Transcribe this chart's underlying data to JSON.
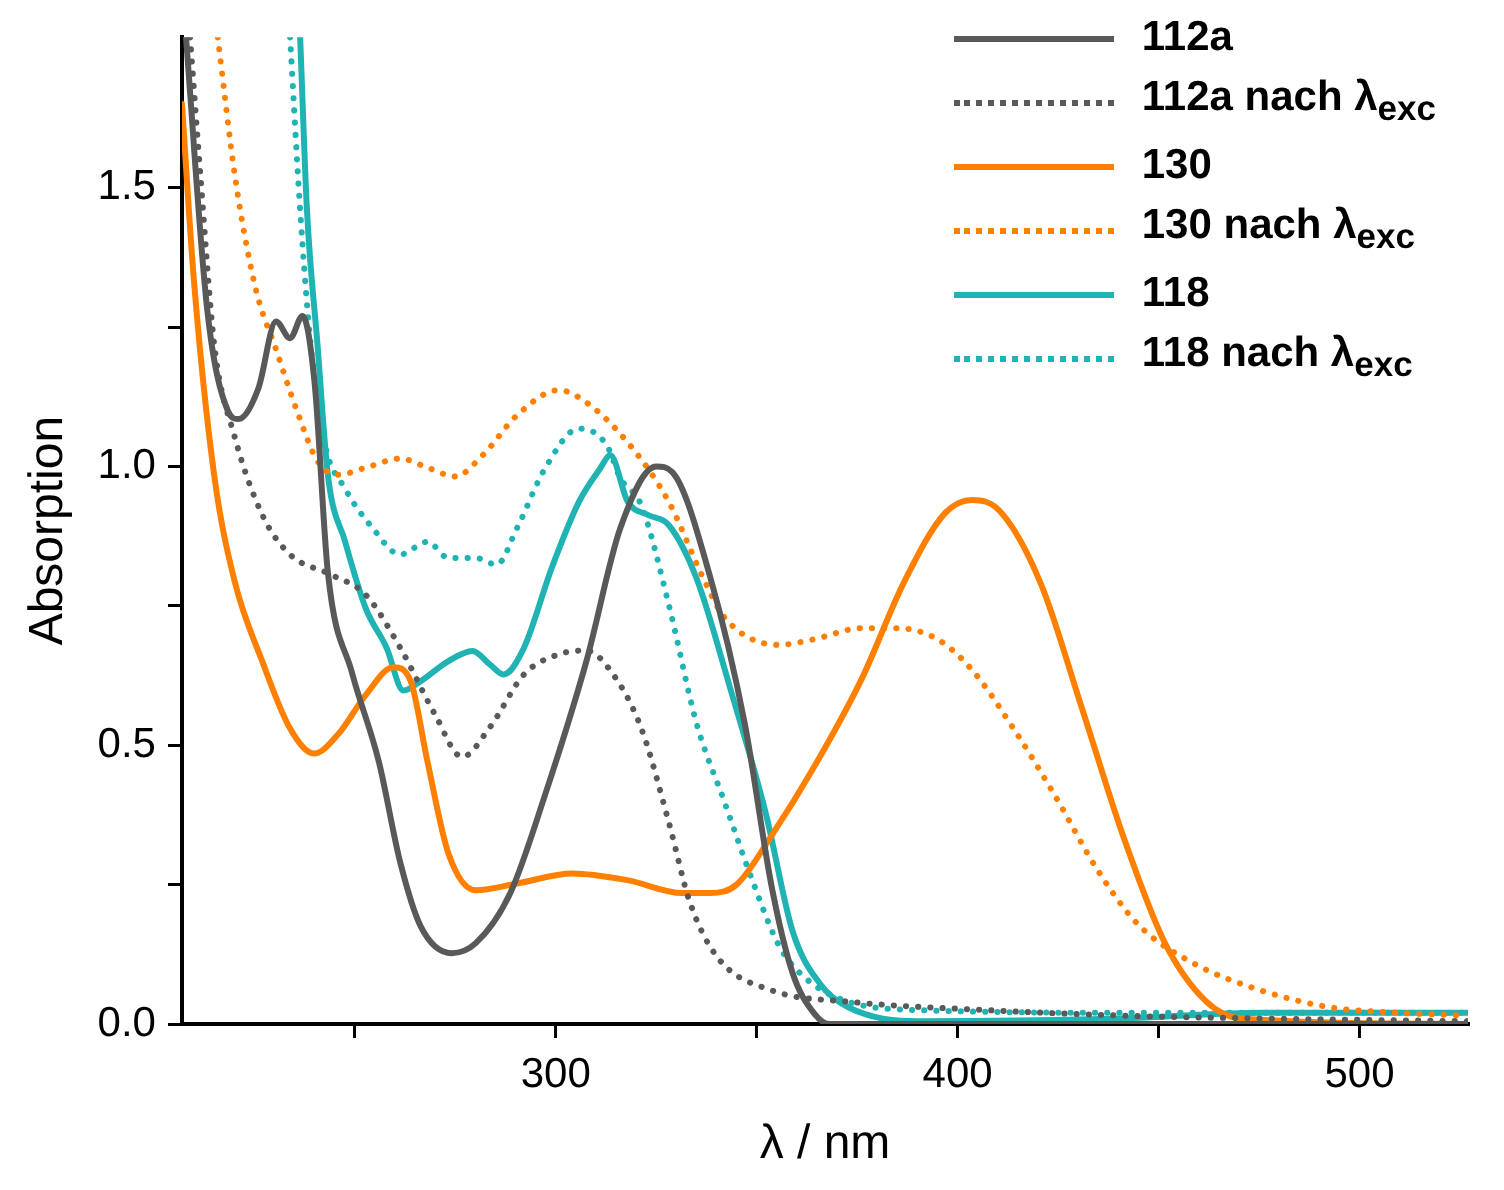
{
  "chart_data": {
    "type": "line",
    "xlabel": "λ / nm",
    "ylabel": "Absorption",
    "xlim": [
      207,
      527
    ],
    "ylim": [
      0,
      1.77
    ],
    "xticks": [
      {
        "value": 250,
        "label": null
      },
      300,
      {
        "value": 350,
        "label": null
      },
      400,
      {
        "value": 450,
        "label": null
      },
      500
    ],
    "yticks": [
      {
        "value": 0,
        "label": "0.0"
      },
      {
        "value": 0.25,
        "label": null
      },
      {
        "value": 0.5,
        "label": "0.5"
      },
      {
        "value": 0.75,
        "label": null
      },
      {
        "value": 1,
        "label": "1.0"
      },
      {
        "value": 1.25,
        "label": null
      },
      {
        "value": 1.5,
        "label": "1.5"
      }
    ],
    "grid": false,
    "legend": "top right",
    "series": [
      {
        "name": "112a",
        "color": "#595959",
        "line_style": "solid",
        "x": [
          208,
          213.3,
          218.4,
          221,
          226,
          230.4,
          233.9,
          237,
          240,
          243.3,
          249.3,
          256,
          261.3,
          266.4,
          274.1,
          280.1,
          288.7,
          297.3,
          307.6,
          316.1,
          325,
          329,
          338.5,
          347,
          353.9,
          359,
          364.2,
          368,
          400,
          450,
          527
        ],
        "values": [
          1.77,
          1.28,
          1.1,
          1.085,
          1.14,
          1.26,
          1.23,
          1.27,
          1.15,
          0.81,
          0.63,
          0.47,
          0.29,
          0.175,
          0.127,
          0.145,
          0.235,
          0.41,
          0.65,
          0.89,
          1.0,
          0.99,
          0.8,
          0.54,
          0.24,
          0.09,
          0.02,
          0,
          0,
          0,
          0
        ]
      },
      {
        "name": "112a nach λ$_{exc}$",
        "color": "#595959",
        "line_style": "dotted",
        "x": [
          209,
          211.6,
          215,
          220,
          227,
          233.9,
          244.1,
          252.7,
          261.3,
          269.9,
          276.7,
          283.6,
          292.1,
          300.7,
          307.6,
          314,
          321.3,
          328.2,
          333.3,
          340.2,
          353.9,
          372.8,
          407,
          441,
          475,
          527
        ],
        "values": [
          1.77,
          1.52,
          1.22,
          1.056,
          0.913,
          0.842,
          0.806,
          0.77,
          0.675,
          0.556,
          0.479,
          0.532,
          0.627,
          0.663,
          0.67,
          0.63,
          0.53,
          0.36,
          0.22,
          0.12,
          0.06,
          0.04,
          0.025,
          0.015,
          0.01,
          0.005
        ]
      },
      {
        "name": "130",
        "color": "#ff8000",
        "line_style": "solid",
        "x": [
          207,
          209.9,
          215,
          220.1,
          227,
          233.9,
          239.9,
          245.9,
          252.7,
          259.6,
          263.9,
          268.1,
          273.3,
          280.1,
          290.4,
          304.1,
          317.8,
          331.5,
          338.4,
          345,
          353.9,
          364.2,
          376.2,
          386.5,
          396.7,
          403.6,
          410.5,
          420.7,
          431,
          441.3,
          451.6,
          461.9,
          470.4,
          527
        ],
        "values": [
          1.65,
          1.34,
          0.985,
          0.794,
          0.65,
          0.53,
          0.485,
          0.52,
          0.59,
          0.64,
          0.615,
          0.47,
          0.306,
          0.24,
          0.252,
          0.27,
          0.258,
          0.235,
          0.235,
          0.25,
          0.34,
          0.46,
          0.62,
          0.79,
          0.915,
          0.94,
          0.92,
          0.79,
          0.565,
          0.335,
          0.145,
          0.04,
          0.01,
          0
        ]
      },
      {
        "name": "130 nach λ$_{exc}$",
        "color": "#ff8000",
        "line_style": "dotted",
        "x": [
          215.9,
          220.2,
          225.3,
          230.4,
          235.6,
          240.7,
          245.9,
          252.7,
          261.3,
          268.1,
          275,
          281.8,
          290.4,
          300.7,
          307.6,
          317.8,
          328.1,
          336.7,
          341.9,
          355.6,
          364.2,
          376.2,
          384.7,
          395,
          403.6,
          413.9,
          424.2,
          434.5,
          444.7,
          458.4,
          475.6,
          492.7,
          509.9,
          527
        ],
        "values": [
          1.77,
          1.52,
          1.32,
          1.21,
          1.1,
          1.01,
          0.985,
          0.998,
          1.014,
          0.998,
          0.982,
          1.02,
          1.092,
          1.137,
          1.115,
          1.044,
          0.937,
          0.8,
          0.73,
          0.68,
          0.69,
          0.71,
          0.71,
          0.69,
          0.635,
          0.53,
          0.41,
          0.28,
          0.18,
          0.11,
          0.06,
          0.03,
          0.02,
          0.015
        ]
      },
      {
        "name": "118",
        "color": "#1fb3b3",
        "line_style": "solid",
        "x": [
          236.4,
          238.1,
          240.7,
          243.3,
          247.6,
          252.7,
          257.9,
          262.1,
          266.4,
          273.3,
          279.3,
          283.6,
          287,
          292.1,
          299,
          305.8,
          311,
          313.6,
          317.9,
          323,
          328.1,
          335,
          343.5,
          352.2,
          359,
          366,
          372.8,
          390,
          441,
          475.6,
          527
        ],
        "values": [
          1.77,
          1.46,
          1.22,
          0.985,
          0.865,
          0.746,
          0.675,
          0.598,
          0.615,
          0.651,
          0.669,
          0.645,
          0.627,
          0.675,
          0.818,
          0.937,
          0.996,
          1.02,
          0.937,
          0.913,
          0.895,
          0.8,
          0.6,
          0.38,
          0.165,
          0.07,
          0.03,
          0.005,
          0.01,
          0.02,
          0.02
        ]
      },
      {
        "name": "118 nach λ$_{exc}$",
        "color": "#1fb3b3",
        "line_style": "dotted",
        "x": [
          233.9,
          236.4,
          239,
          242.4,
          247.6,
          254.4,
          261.3,
          268.1,
          273.3,
          280.1,
          285.3,
          290.4,
          297.3,
          305.8,
          312.7,
          316,
          321.3,
          328.2,
          335,
          341.9,
          348.8,
          355.6,
          362.5,
          372.8,
          390,
          450,
          527
        ],
        "values": [
          1.77,
          1.46,
          1.22,
          1.044,
          0.96,
          0.89,
          0.842,
          0.865,
          0.836,
          0.836,
          0.824,
          0.89,
          0.996,
          1.068,
          1.038,
          0.98,
          0.93,
          0.75,
          0.54,
          0.4,
          0.26,
          0.14,
          0.08,
          0.04,
          0.025,
          0.02,
          0.02
        ]
      }
    ]
  }
}
